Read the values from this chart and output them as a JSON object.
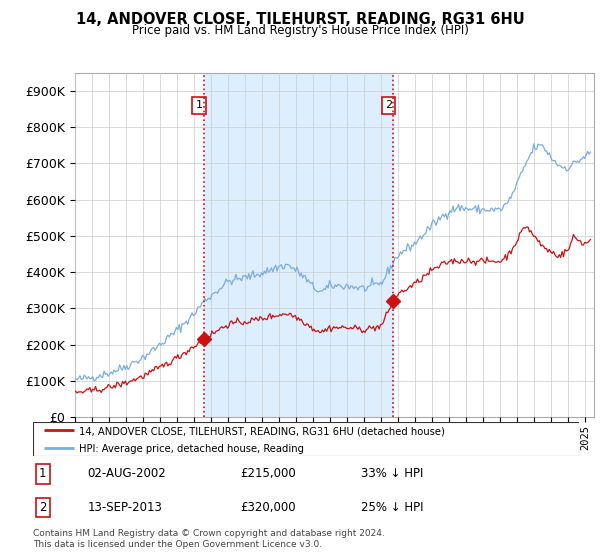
{
  "title": "14, ANDOVER CLOSE, TILEHURST, READING, RG31 6HU",
  "subtitle": "Price paid vs. HM Land Registry's House Price Index (HPI)",
  "legend_line1": "14, ANDOVER CLOSE, TILEHURST, READING, RG31 6HU (detached house)",
  "legend_line2": "HPI: Average price, detached house, Reading",
  "footnote": "Contains HM Land Registry data © Crown copyright and database right 2024.\nThis data is licensed under the Open Government Licence v3.0.",
  "sale1_label": "1",
  "sale1_date": "02-AUG-2002",
  "sale1_price": "£215,000",
  "sale1_hpi": "33% ↓ HPI",
  "sale2_label": "2",
  "sale2_date": "13-SEP-2013",
  "sale2_price": "£320,000",
  "sale2_hpi": "25% ↓ HPI",
  "hpi_color": "#7aade0",
  "price_color": "#cc1111",
  "vline_color": "#cc1111",
  "shade_color": "#ddeeff",
  "ylim": [
    0,
    950000
  ],
  "yticks": [
    0,
    100000,
    200000,
    300000,
    400000,
    500000,
    600000,
    700000,
    800000,
    900000
  ],
  "xlim_start": 1995.0,
  "xlim_end": 2025.5,
  "sale1_x": 2002.583,
  "sale2_x": 2013.708,
  "sale1_y": 215000,
  "sale2_y": 320000
}
